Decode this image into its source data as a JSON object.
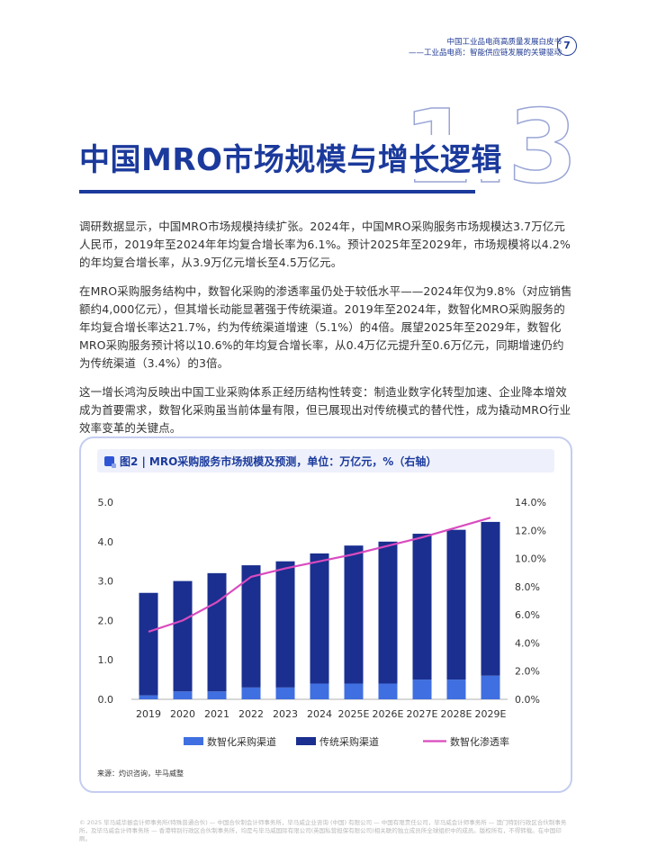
{
  "header": {
    "line1": "中国工业品电商高质量发展白皮书",
    "line2": "——工业品电商：智能供应链发展的关键驱动",
    "page_number": "7"
  },
  "section": {
    "number": "1.3",
    "title": "中国MRO市场规模与增长逻辑"
  },
  "paragraphs": [
    "调研数据显示，中国MRO市场规模持续扩张。2024年，中国MRO采购服务市场规模达3.7万亿元人民币，2019年至2024年年均复合增长率为6.1%。预计2025年至2029年，市场规模将以4.2%的年均复合增长率，从3.9万亿元增长至4.5万亿元。",
    "在MRO采购服务结构中，数智化采购的渗透率虽仍处于较低水平——2024年仅为9.8%（对应销售额约4,000亿元），但其增长动能显著强于传统渠道。2019年至2024年，数智化MRO采购服务的年均复合增长率达21.7%，约为传统渠道增速（5.1%）的4倍。展望2025年至2029年，数智化MRO采购服务预计将以10.6%的年均复合增长率，从0.4万亿元提升至0.6万亿元，同期增速仍约为传统渠道（3.4%）的3倍。",
    "这一增长鸿沟反映出中国工业采购体系正经历结构性转变：制造业数字化转型加速、企业降本增效成为首要需求，数智化采购虽当前体量有限，但已展现出对传统模式的替代性，成为撬动MRO行业效率变革的关键点。"
  ],
  "figure": {
    "label": "图2 |",
    "caption": "MRO采购服务市场规模及预测，单位：万亿元，%（右轴）",
    "source": "来源：灼识咨询，毕马威整"
  },
  "chart_data": {
    "type": "bar",
    "stacked": true,
    "categories": [
      "2019",
      "2020",
      "2021",
      "2022",
      "2023",
      "2024",
      "2025E",
      "2026E",
      "2027E",
      "2028E",
      "2029E"
    ],
    "series": [
      {
        "name": "数智化采购渠道",
        "kind": "bar",
        "axis": "left",
        "color": "#3f6fe0",
        "values": [
          0.1,
          0.2,
          0.2,
          0.3,
          0.3,
          0.4,
          0.4,
          0.4,
          0.5,
          0.5,
          0.6
        ]
      },
      {
        "name": "传统采购渠道",
        "kind": "bar",
        "axis": "left",
        "color": "#1a2f8f",
        "values": [
          2.6,
          2.8,
          3.0,
          3.1,
          3.2,
          3.3,
          3.5,
          3.6,
          3.7,
          3.8,
          3.9
        ]
      },
      {
        "name": "数智化渗透率",
        "kind": "line",
        "axis": "right",
        "color": "#d94bbf",
        "values": [
          4.8,
          5.6,
          6.9,
          8.7,
          9.3,
          9.8,
          10.3,
          10.9,
          11.5,
          12.2,
          12.9
        ]
      }
    ],
    "y_left": {
      "min": 0,
      "max": 5,
      "ticks": [
        "0.0",
        "1.0",
        "2.0",
        "3.0",
        "4.0",
        "5.0"
      ]
    },
    "y_right": {
      "min": 0,
      "max": 14,
      "ticks": [
        "0.0%",
        "2.0%",
        "4.0%",
        "6.0%",
        "8.0%",
        "10.0%",
        "12.0%",
        "14.0%"
      ]
    },
    "grid": false,
    "legend_position": "bottom"
  },
  "footer": "© 2025 毕马威华振会计师事务所(特殊普通合伙) — 中国合伙制会计师事务所，毕马威企业咨询 (中国) 有限公司 — 中国有限责任公司，毕马威会计师事务所 — 澳门特别行政区合伙制事务所，及毕马威会计师事务所 — 香港特别行政区合伙制事务所，均是与毕马威国际有限公司(英国私营担保有限公司)相关联的独立成员所全球组织中的成员。版权所有，不得转载。在中国印刷。"
}
